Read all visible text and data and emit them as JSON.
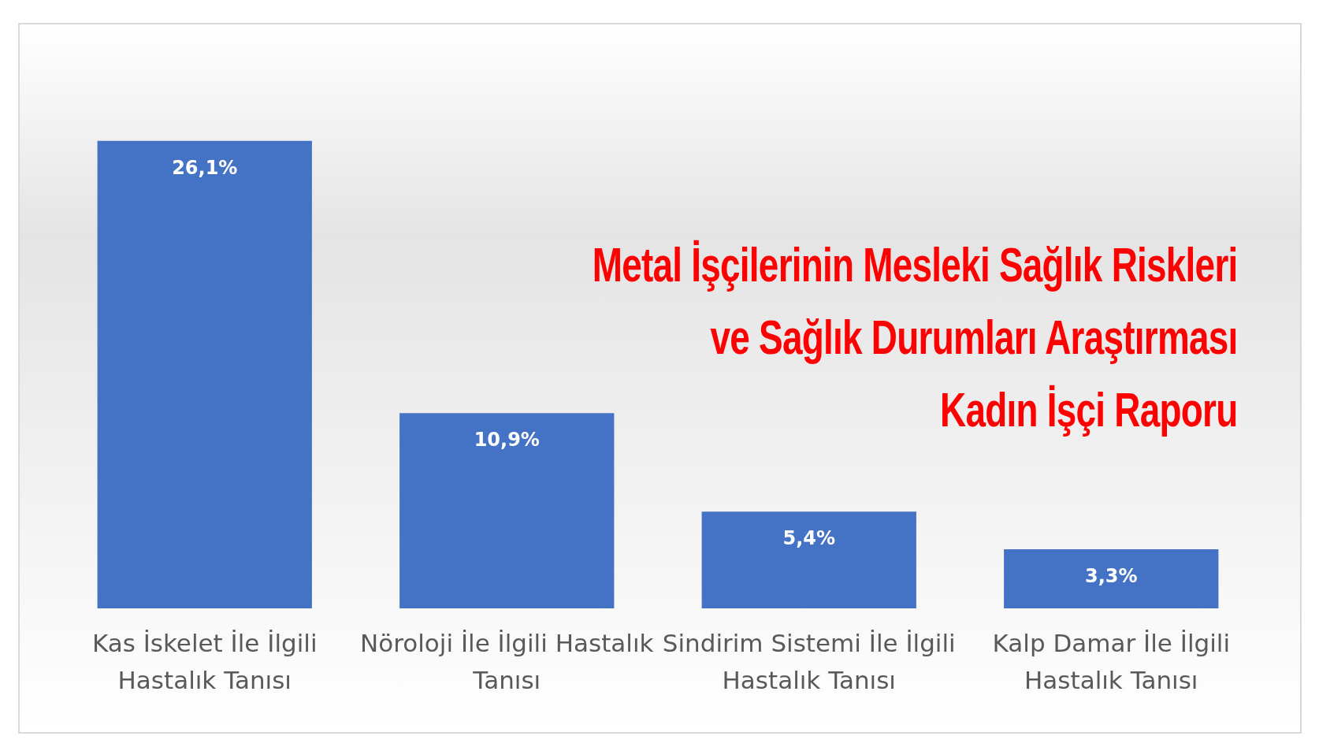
{
  "chart_data": {
    "type": "bar",
    "title": "Metal İşçilerinin Mesleki Sağlık Riskleri\nve Sağlık Durumları Araştırması\nKadın İşçi Raporu",
    "categories": [
      "Kas İskelet İle İlgili Hastalık Tanısı",
      "Nöroloji İle İlgili Hastalık Tanısı",
      "Sindirim Sistemi İle İlgili Hastalık Tanısı",
      "Kalp Damar İle İlgili Hastalık Tanısı"
    ],
    "values": [
      26.1,
      10.9,
      5.4,
      3.3
    ],
    "value_labels": [
      "26,1%",
      "10,9%",
      "5,4%",
      "3,3%"
    ],
    "color": "#4472c4",
    "grid": false,
    "legend": false
  }
}
